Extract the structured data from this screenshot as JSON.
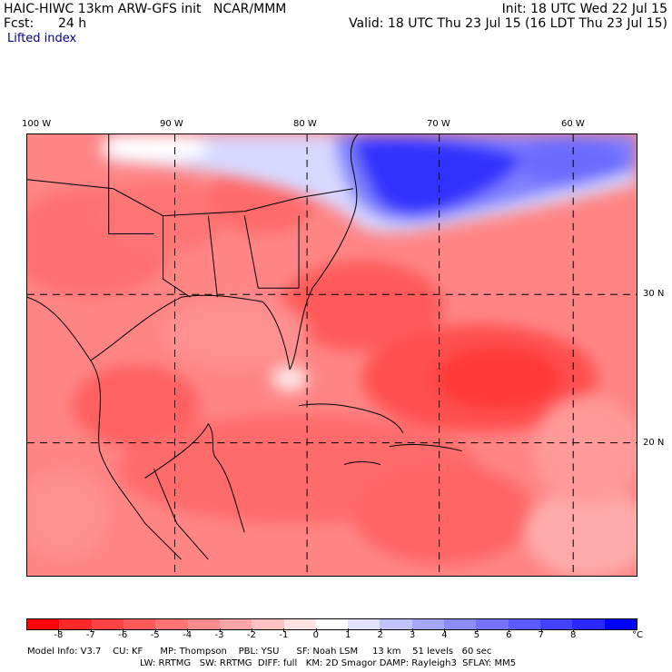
{
  "header": {
    "model": "HAIC-HIWC 13km ARW-GFS init   NCAR/MMM",
    "init": "Init: 18 UTC Wed 22 Jul 15",
    "fcst_label": "Fcst:",
    "fcst_value": "24 h",
    "valid": "Valid: 18 UTC Thu 23 Jul 15 (16 LDT Thu 23 Jul 15)",
    "field": "Lifted index"
  },
  "axes": {
    "longitude_labels": [
      "100 W",
      "90 W",
      "80 W",
      "70 W",
      "60 W"
    ],
    "latitude_labels": [
      "30 N",
      "20 N"
    ]
  },
  "colorbar": {
    "ticks": [
      "-8",
      "-7",
      "-6",
      "-5",
      "-4",
      "-3",
      "-2",
      "-1",
      "0",
      "1",
      "2",
      "3",
      "4",
      "5",
      "6",
      "7",
      "8"
    ],
    "unit": "°C",
    "colors": [
      "#ff0000",
      "#ff2828",
      "#ff4242",
      "#ff5a5a",
      "#ff7373",
      "#ff8c8c",
      "#ffa5a5",
      "#ffc2c2",
      "#ffe2e2",
      "#ffffff",
      "#e2e2ff",
      "#c2c2ff",
      "#a5a5ff",
      "#8c8cff",
      "#7373ff",
      "#5a5aff",
      "#4242ff",
      "#2828ff",
      "#0000ff"
    ]
  },
  "footer": {
    "line1": "Model Info: V3.7    CU: KF      MP: Thompson    PBL: YSU      SF: Noah LSM     13 km    51 levels   60 sec",
    "line2": "LW: RRTMG   SW: RRTMG  DIFF: full   KM: 2D Smagor DAMP: Rayleigh3  SFLAY: MM5"
  }
}
